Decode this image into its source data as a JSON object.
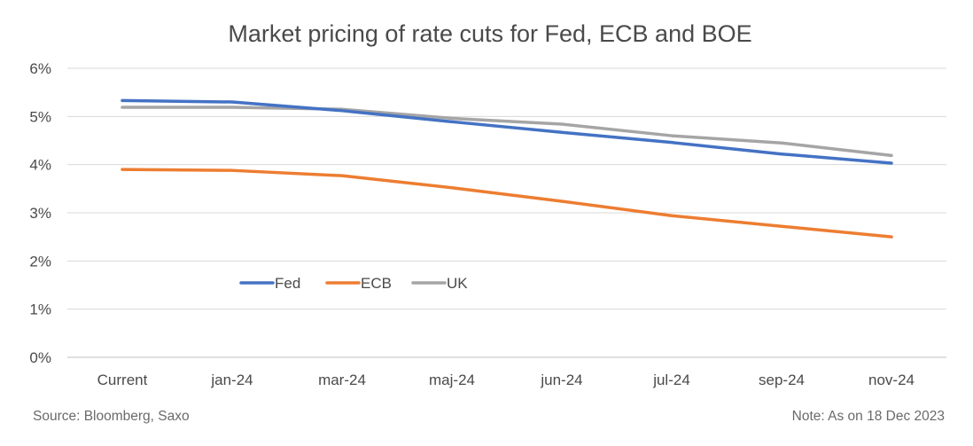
{
  "chart_data": {
    "type": "line",
    "title": "Market pricing of rate cuts for Fed, ECB and BOE",
    "xlabel": "",
    "ylabel": "",
    "categories": [
      "Current",
      "jan-24",
      "mar-24",
      "maj-24",
      "jun-24",
      "jul-24",
      "sep-24",
      "nov-24"
    ],
    "ylim": [
      0,
      6
    ],
    "yticks": [
      "0%",
      "1%",
      "2%",
      "3%",
      "4%",
      "5%",
      "6%"
    ],
    "grid": true,
    "legend_position": "inside-left",
    "series": [
      {
        "name": "Fed",
        "color": "#4472C4",
        "values": [
          5.33,
          5.3,
          5.12,
          4.89,
          4.67,
          4.46,
          4.22,
          4.03
        ]
      },
      {
        "name": "ECB",
        "color": "#ED7D31",
        "values": [
          3.9,
          3.88,
          3.77,
          3.52,
          3.24,
          2.94,
          2.72,
          2.5
        ]
      },
      {
        "name": "UK",
        "color": "#A5A5A5",
        "values": [
          5.19,
          5.19,
          5.15,
          4.96,
          4.84,
          4.6,
          4.45,
          4.19
        ]
      }
    ]
  },
  "footer": {
    "source": "Source: Bloomberg, Saxo",
    "note": "Note: As on 18 Dec 2023"
  }
}
